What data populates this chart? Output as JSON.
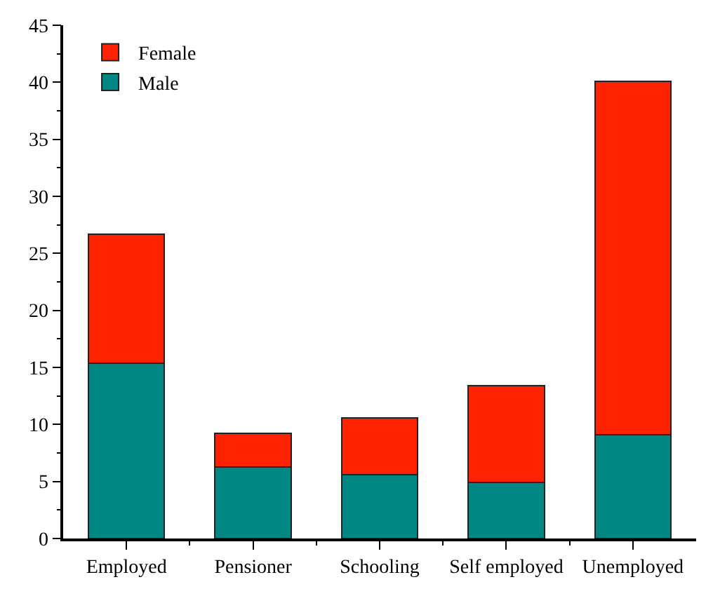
{
  "chart_data": {
    "type": "bar",
    "stacked": true,
    "categories": [
      "Employed",
      "Pensioner",
      "Schooling",
      "Self employed",
      "Unemployed"
    ],
    "series": [
      {
        "name": "Male",
        "color": "#008683",
        "values": [
          15.4,
          6.3,
          5.6,
          4.9,
          9.1
        ]
      },
      {
        "name": "Female",
        "color": "#ff2200",
        "values": [
          11.3,
          2.9,
          5.0,
          8.5,
          31.0
        ]
      }
    ],
    "ylim": [
      0,
      45
    ],
    "yticks": [
      0,
      5,
      10,
      15,
      20,
      25,
      30,
      35,
      40,
      45
    ],
    "grid": false,
    "legend": "top left"
  }
}
